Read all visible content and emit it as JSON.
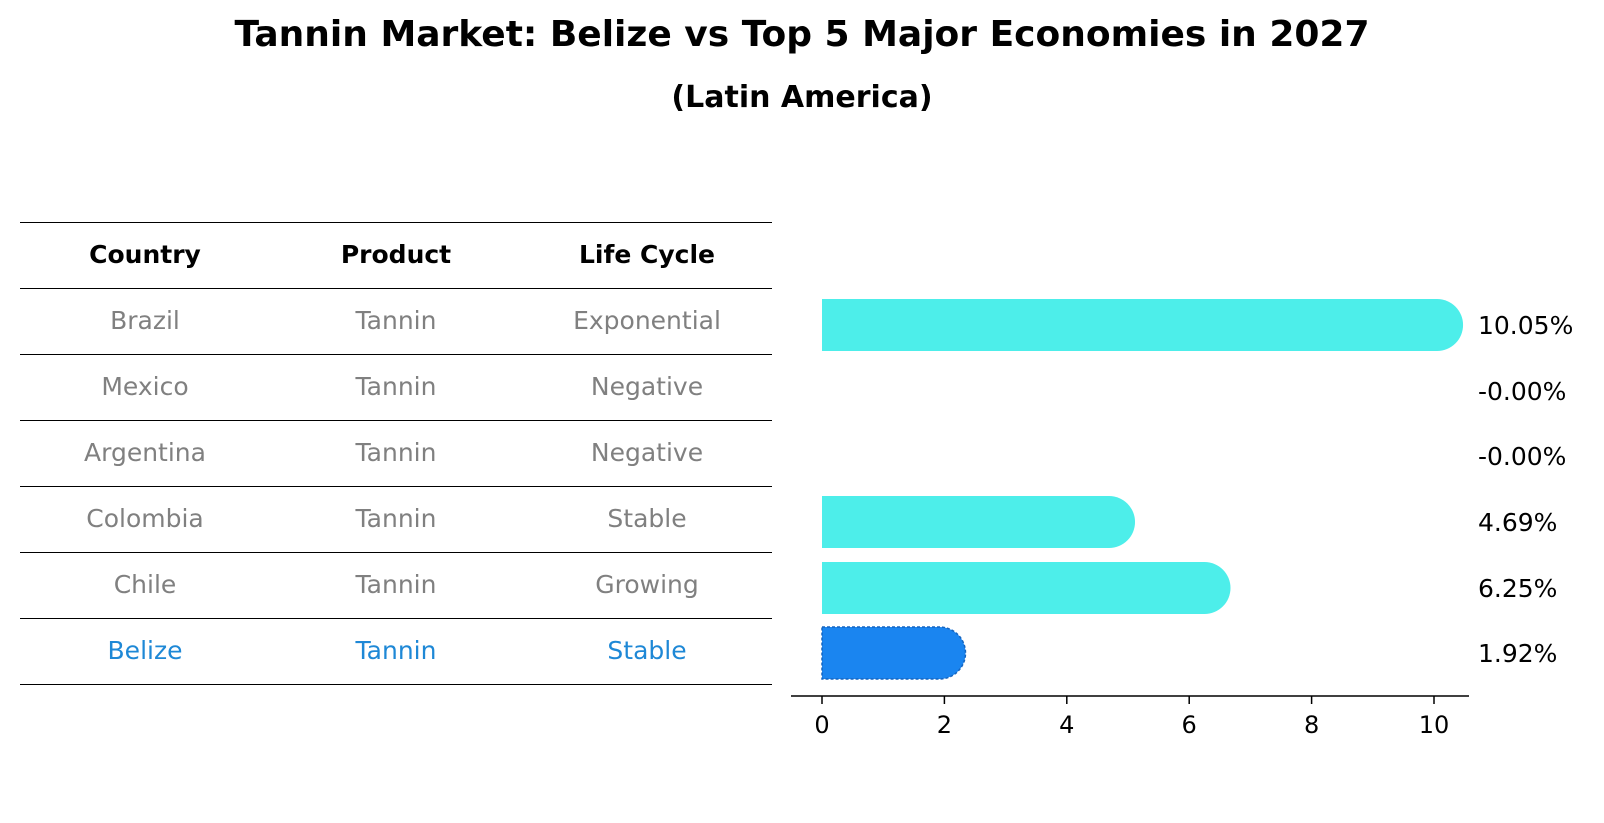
{
  "title": "Tannin Market: Belize vs Top 5 Major Economies in 2027",
  "subtitle": "(Latin America)",
  "table": {
    "headers": [
      "Country",
      "Product",
      "Life Cycle"
    ],
    "rows": [
      [
        "Brazil",
        "Tannin",
        "Exponential"
      ],
      [
        "Mexico",
        "Tannin",
        "Negative"
      ],
      [
        "Argentina",
        "Tannin",
        "Negative"
      ],
      [
        "Colombia",
        "Tannin",
        "Stable"
      ],
      [
        "Chile",
        "Tannin",
        "Growing"
      ],
      [
        "Belize",
        "Tannin",
        "Stable"
      ]
    ],
    "highlight_row": "Belize"
  },
  "colors": {
    "bar": "#4DEEEA",
    "highlight_bar": "#1A85F0",
    "highlight_text": "#1E88D6",
    "muted_text": "#808080"
  },
  "chart_data": {
    "type": "bar",
    "orientation": "horizontal",
    "categories": [
      "Brazil",
      "Mexico",
      "Argentina",
      "Colombia",
      "Chile",
      "Belize"
    ],
    "values": [
      10.05,
      -0.0,
      -0.0,
      4.69,
      6.25,
      1.92
    ],
    "labels": [
      "10.05%",
      "-0.00%",
      "-0.00%",
      "4.69%",
      "6.25%",
      "1.92%"
    ],
    "highlight": "Belize",
    "xticks": [
      0,
      2,
      4,
      6,
      8,
      10
    ],
    "xlim": [
      -0.5,
      10.5
    ],
    "grid": false
  }
}
